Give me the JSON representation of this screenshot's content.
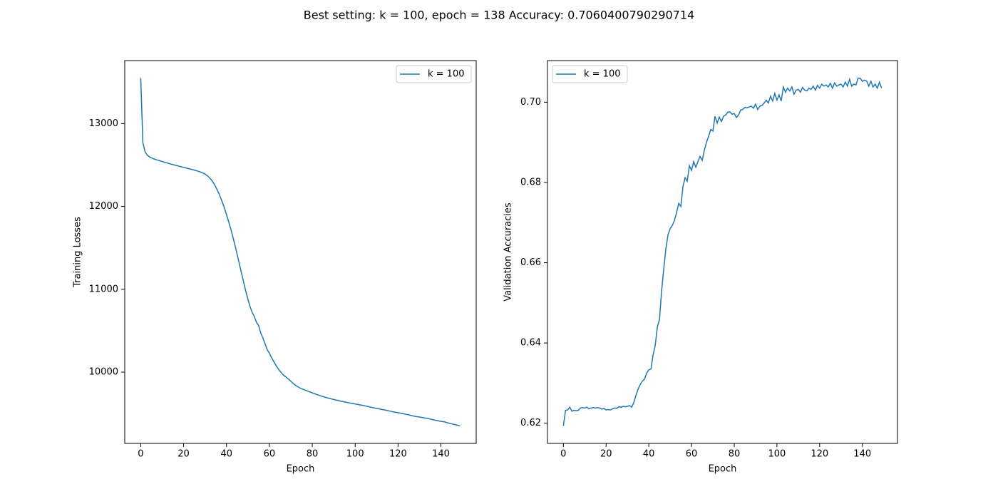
{
  "title": "Best setting: k = 100, epoch = 138 Accuracy: 0.7060400790290714",
  "chart_data": [
    {
      "type": "line",
      "xlabel": "Epoch",
      "ylabel": "Training Losses",
      "xlim": [
        -7.45,
        156.45
      ],
      "ylim": [
        9140,
        13760
      ],
      "xticks": [
        0,
        20,
        40,
        60,
        80,
        100,
        120,
        140
      ],
      "yticks": [
        10000,
        11000,
        12000,
        13000
      ],
      "legend": "upper right",
      "x": [
        0,
        1,
        2,
        3,
        4,
        5,
        6,
        7,
        8,
        9,
        10,
        11,
        12,
        13,
        14,
        15,
        16,
        17,
        18,
        19,
        20,
        21,
        22,
        23,
        24,
        25,
        26,
        27,
        28,
        29,
        30,
        31,
        32,
        33,
        34,
        35,
        36,
        37,
        38,
        39,
        40,
        41,
        42,
        43,
        44,
        45,
        46,
        47,
        48,
        49,
        50,
        51,
        52,
        53,
        54,
        55,
        56,
        57,
        58,
        59,
        60,
        61,
        62,
        63,
        64,
        65,
        66,
        67,
        68,
        69,
        70,
        71,
        72,
        73,
        74,
        75,
        76,
        77,
        78,
        79,
        80,
        81,
        82,
        83,
        84,
        85,
        86,
        87,
        88,
        89,
        90,
        91,
        92,
        93,
        94,
        95,
        96,
        97,
        98,
        99,
        100,
        101,
        102,
        103,
        104,
        105,
        106,
        107,
        108,
        109,
        110,
        111,
        112,
        113,
        114,
        115,
        116,
        117,
        118,
        119,
        120,
        121,
        122,
        123,
        124,
        125,
        126,
        127,
        128,
        129,
        130,
        131,
        132,
        133,
        134,
        135,
        136,
        137,
        138,
        139,
        140,
        141,
        142,
        143,
        144,
        145,
        146,
        147,
        148,
        149
      ],
      "series": [
        {
          "name": "k = 100",
          "color": "#1f77b4",
          "values": [
            13550,
            12770,
            12660,
            12620,
            12600,
            12585,
            12575,
            12566,
            12558,
            12550,
            12542,
            12534,
            12527,
            12519,
            12512,
            12505,
            12498,
            12491,
            12484,
            12478,
            12471,
            12465,
            12458,
            12452,
            12445,
            12438,
            12431,
            12423,
            12414,
            12403,
            12390,
            12372,
            12348,
            12318,
            12280,
            12235,
            12182,
            12122,
            12055,
            11982,
            11903,
            11818,
            11727,
            11630,
            11526,
            11418,
            11305,
            11195,
            11085,
            10975,
            10880,
            10790,
            10720,
            10670,
            10600,
            10560,
            10470,
            10410,
            10340,
            10270,
            10230,
            10175,
            10130,
            10085,
            10045,
            10010,
            9980,
            9955,
            9935,
            9915,
            9890,
            9865,
            9845,
            9828,
            9812,
            9800,
            9790,
            9780,
            9770,
            9760,
            9750,
            9740,
            9731,
            9722,
            9713,
            9705,
            9697,
            9690,
            9683,
            9676,
            9670,
            9664,
            9658,
            9652,
            9646,
            9641,
            9636,
            9631,
            9626,
            9621,
            9616,
            9611,
            9606,
            9601,
            9596,
            9591,
            9585,
            9579,
            9573,
            9567,
            9562,
            9557,
            9552,
            9547,
            9542,
            9537,
            9531,
            9525,
            9520,
            9515,
            9510,
            9505,
            9500,
            9495,
            9490,
            9484,
            9478,
            9472,
            9466,
            9462,
            9458,
            9454,
            9450,
            9445,
            9440,
            9434,
            9428,
            9422,
            9416,
            9411,
            9406,
            9402,
            9398,
            9390,
            9382,
            9375,
            9370,
            9365,
            9358,
            9350
          ]
        }
      ]
    },
    {
      "type": "line",
      "xlabel": "Epoch",
      "ylabel": "Validation Accuracies",
      "xlim": [
        -7.45,
        156.45
      ],
      "ylim": [
        0.61497,
        0.71037
      ],
      "xticks": [
        0,
        20,
        40,
        60,
        80,
        100,
        120,
        140
      ],
      "yticks": [
        0.62,
        0.64,
        0.66,
        0.68,
        {
          "value": 0.7,
          "label": "0.70"
        }
      ],
      "legend": "upper left",
      "x": [
        0,
        1,
        2,
        3,
        4,
        5,
        6,
        7,
        8,
        9,
        10,
        11,
        12,
        13,
        14,
        15,
        16,
        17,
        18,
        19,
        20,
        21,
        22,
        23,
        24,
        25,
        26,
        27,
        28,
        29,
        30,
        31,
        32,
        33,
        34,
        35,
        36,
        37,
        38,
        39,
        40,
        41,
        42,
        43,
        44,
        45,
        46,
        47,
        48,
        49,
        50,
        51,
        52,
        53,
        54,
        55,
        56,
        57,
        58,
        59,
        60,
        61,
        62,
        63,
        64,
        65,
        66,
        67,
        68,
        69,
        70,
        71,
        72,
        73,
        74,
        75,
        76,
        77,
        78,
        79,
        80,
        81,
        82,
        83,
        84,
        85,
        86,
        87,
        88,
        89,
        90,
        91,
        92,
        93,
        94,
        95,
        96,
        97,
        98,
        99,
        100,
        101,
        102,
        103,
        104,
        105,
        106,
        107,
        108,
        109,
        110,
        111,
        112,
        113,
        114,
        115,
        116,
        117,
        118,
        119,
        120,
        121,
        122,
        123,
        124,
        125,
        126,
        127,
        128,
        129,
        130,
        131,
        132,
        133,
        134,
        135,
        136,
        137,
        138,
        139,
        140,
        141,
        142,
        143,
        144,
        145,
        146,
        147,
        148,
        149
      ],
      "series": [
        {
          "name": "k = 100",
          "color": "#1f77b4",
          "values": [
            0.6193,
            0.6232,
            0.6233,
            0.624,
            0.623,
            0.6232,
            0.6231,
            0.6232,
            0.6238,
            0.6239,
            0.6238,
            0.624,
            0.6236,
            0.6238,
            0.6239,
            0.6238,
            0.6239,
            0.6238,
            0.6235,
            0.6237,
            0.6233,
            0.6234,
            0.6233,
            0.6236,
            0.6238,
            0.6237,
            0.6241,
            0.624,
            0.6242,
            0.6241,
            0.6242,
            0.6244,
            0.624,
            0.6252,
            0.627,
            0.6285,
            0.6297,
            0.6305,
            0.631,
            0.6325,
            0.6333,
            0.6335,
            0.637,
            0.6393,
            0.644,
            0.6458,
            0.653,
            0.6585,
            0.6635,
            0.667,
            0.6685,
            0.6693,
            0.6705,
            0.6725,
            0.6748,
            0.674,
            0.679,
            0.6812,
            0.6803,
            0.6842,
            0.683,
            0.6852,
            0.6838,
            0.6852,
            0.6865,
            0.6855,
            0.688,
            0.69,
            0.6915,
            0.6932,
            0.6928,
            0.6965,
            0.6948,
            0.6963,
            0.6952,
            0.6965,
            0.6968,
            0.6975,
            0.6976,
            0.697,
            0.6972,
            0.6962,
            0.6968,
            0.698,
            0.6982,
            0.6987,
            0.6986,
            0.6988,
            0.699,
            0.6985,
            0.6995,
            0.6982,
            0.699,
            0.6992,
            0.6998,
            0.7005,
            0.6998,
            0.7015,
            0.7003,
            0.7022,
            0.7005,
            0.7018,
            0.7003,
            0.7038,
            0.7025,
            0.7035,
            0.7028,
            0.7038,
            0.702,
            0.703,
            0.7032,
            0.7025,
            0.7037,
            0.703,
            0.7028,
            0.7035,
            0.7032,
            0.704,
            0.703,
            0.7042,
            0.7035,
            0.7045,
            0.704,
            0.7043,
            0.7038,
            0.7047,
            0.7035,
            0.7048,
            0.704,
            0.7043,
            0.7045,
            0.7038,
            0.705,
            0.704,
            0.7057,
            0.704,
            0.7045,
            0.7043,
            0.706,
            0.706,
            0.7052,
            0.7055,
            0.7053,
            0.704,
            0.7052,
            0.7038,
            0.7045,
            0.7035,
            0.705,
            0.7035
          ]
        }
      ]
    }
  ]
}
